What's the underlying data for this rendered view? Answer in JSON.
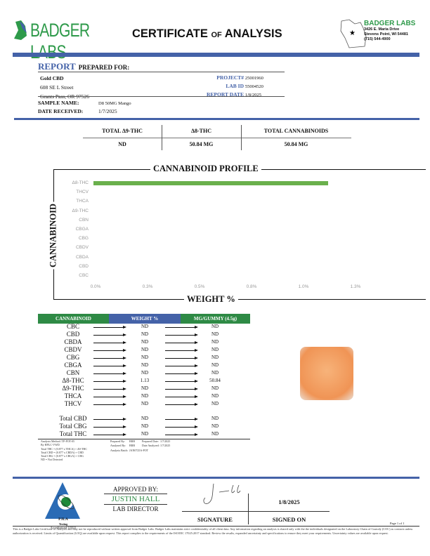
{
  "header": {
    "logo_text": "BADGER LABS",
    "title_part1": "CERTIFICATE",
    "title_of": "of",
    "title_part2": "ANALYSIS",
    "lab_name": "BADGER LABS",
    "lab_address1": "3426 E. Maria Drive",
    "lab_address2": "Stevens Point, WI 54481",
    "lab_phone": "(715) 544-4900"
  },
  "report": {
    "report_word": "REPORT",
    "prepared_for": "PREPARED FOR:",
    "client_name": "Gold CBD",
    "client_street": "608 SE L Street",
    "client_city": "Grants Pass, OR 97526",
    "project_label": "PROJECT#",
    "project": "25001960",
    "lab_id_label": "LAB ID",
    "lab_id": "55004520",
    "report_date_label": "REPORT DATE",
    "report_date": "1/8/2025",
    "sample_name_label": "SAMPLE NAME:",
    "sample_name": "D8 50MG Mango",
    "date_received_label": "DATE RECEIVED:",
    "date_received": "1/7/2025"
  },
  "summary": {
    "headers": [
      "TOTAL Δ9-THC",
      "Δ8-THC",
      "TOTAL CANNABINOIDS"
    ],
    "values": [
      "ND",
      "50.84 MG",
      "50.84 MG"
    ]
  },
  "chart_data": {
    "type": "bar",
    "orientation": "horizontal",
    "title": "CANNABINOID PROFILE",
    "xlabel": "WEIGHT %",
    "ylabel": "CANNABINOID",
    "categories": [
      "Δ8-THC",
      "THCV",
      "THCA",
      "Δ9-THC",
      "CBN",
      "CBGA",
      "CBG",
      "CBDV",
      "CBDA",
      "CBD",
      "CBC"
    ],
    "values": [
      1.13,
      0,
      0,
      0,
      0,
      0,
      0,
      0,
      0,
      0,
      0
    ],
    "xlim": [
      0,
      1.25
    ],
    "xticks": [
      0,
      0.25,
      0.5,
      0.75,
      1.0,
      1.25
    ],
    "xtick_labels": [
      "0.0%",
      "0.3%",
      "0.5%",
      "0.8%",
      "1.0%",
      "1.3%"
    ],
    "bar_color": "#6ab04c",
    "grid": false
  },
  "results": {
    "headers": [
      "CANNABINOID",
      "WEIGHT %",
      "MG/GUMMY (4.5g)"
    ],
    "rows": [
      {
        "name": "CBC",
        "weight": "ND",
        "mg": "ND"
      },
      {
        "name": "CBD",
        "weight": "ND",
        "mg": "ND"
      },
      {
        "name": "CBDA",
        "weight": "ND",
        "mg": "ND"
      },
      {
        "name": "CBDV",
        "weight": "ND",
        "mg": "ND"
      },
      {
        "name": "CBG",
        "weight": "ND",
        "mg": "ND"
      },
      {
        "name": "CBGA",
        "weight": "ND",
        "mg": "ND"
      },
      {
        "name": "CBN",
        "weight": "ND",
        "mg": "ND"
      },
      {
        "name": "Δ8-THC",
        "weight": "1.13",
        "mg": "50.84"
      },
      {
        "name": "Δ9-THC",
        "weight": "ND",
        "mg": "ND"
      },
      {
        "name": "THCA",
        "weight": "ND",
        "mg": "ND"
      },
      {
        "name": "THCV",
        "weight": "ND",
        "mg": "ND"
      }
    ],
    "totals": [
      {
        "name": "Total CBD",
        "weight": "ND",
        "mg": "ND"
      },
      {
        "name": "Total CBG",
        "weight": "ND",
        "mg": "ND"
      },
      {
        "name": "Total THC",
        "weight": "ND",
        "mg": "ND"
      }
    ]
  },
  "notes": {
    "method": [
      "Analysis Method: TP-POT-05",
      "By HPLC-VWD",
      "Total THC = (0.877 x THCA) + Δ9-THC",
      "Total CBD = (0.877 x CBDA) + CBD",
      "Total CBG = (0.877 x CBGA) + CBG",
      "ND = Not Detected"
    ],
    "prepared_by_label": "Prepared By:",
    "prepared_by": "BRB",
    "prepared_date_label": "Prepared Date:",
    "prepared_date": "1/7/2025",
    "analyzed_by_label": "Analyzed By:",
    "analyzed_by": "BRB",
    "date_analyzed_label": "Date Analyzed:",
    "date_analyzed": "1/7/2025",
    "batch_label": "Analysis Batch:",
    "batch": "JAN0725A-POT"
  },
  "footer": {
    "pjla": "PJLA",
    "testing": "Testing",
    "accreditation": "Accreditation# 115522",
    "approved_by": "APPROVED BY:",
    "approver": "JUSTIN HALL",
    "approver_title": "LAB DIRECTOR",
    "signature_label": "SIGNATURE",
    "signed_on_label": "SIGNED ON",
    "signed_date": "1/8/2025",
    "page": "Page 1 of 1",
    "disclaimer": "This is a Badger Labs Certificate of Analysis and may not be reproduced without written approval from Badger Labs. Badger Labs maintains strict confidentiality of all client data. Any information regarding an analysis is shared only with the the individuals designated on the Laboratory Chain of Custody (COC) as contacts unless authorization is received. Limits of Quantification (LOQ) are available upon request. This report complies to the requirements of the ISO/IEC 17025:2017 standard. Review the results, expanded uncertainty and specifications to ensure they meet your requirements. Uncertainty values are available upon request."
  }
}
